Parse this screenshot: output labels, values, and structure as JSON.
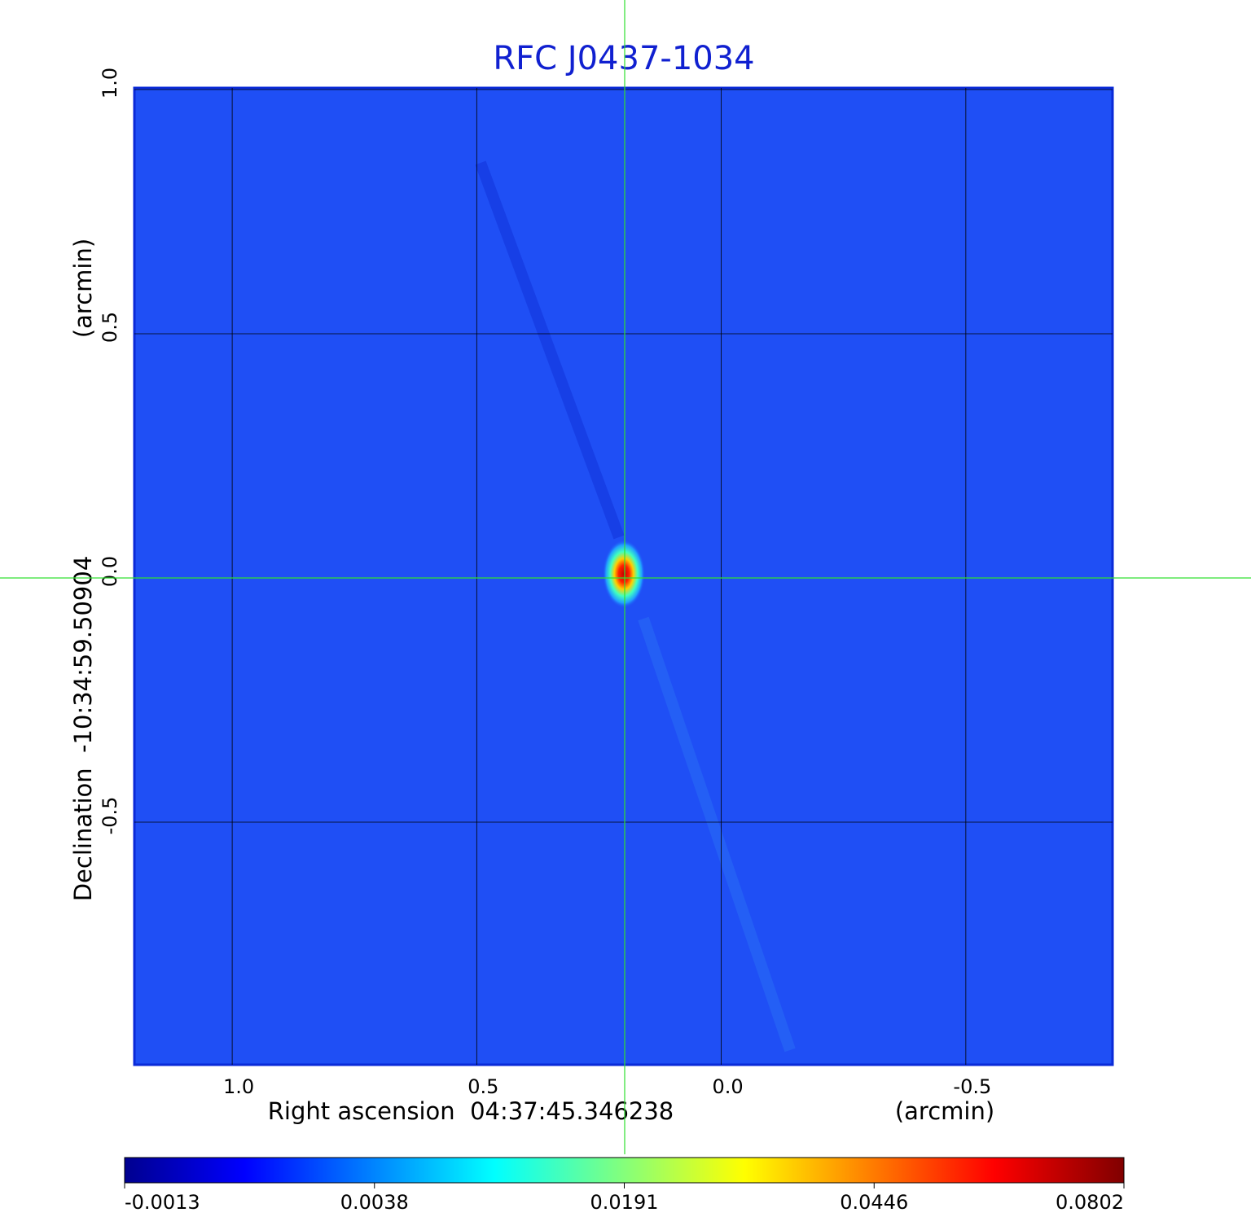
{
  "chart_data": {
    "type": "image",
    "title": "RFC J0437-1034",
    "x_label": "Right ascension  04:37:45.346238",
    "x_unit": "(arcmin)",
    "y_label": "Declination  -10:34:59.50904",
    "y_unit": "(arcmin)",
    "xlim": [
      1.2,
      -0.8
    ],
    "ylim": [
      -1.0,
      1.0
    ],
    "xticks": [
      {
        "value": 1,
        "label": "1.0"
      },
      {
        "value": 0.5,
        "label": "0.5"
      },
      {
        "value": 0,
        "label": "0.0"
      },
      {
        "value": -0.5,
        "label": "-0.5"
      }
    ],
    "yticks": [
      {
        "value": 1,
        "label": "1.0"
      },
      {
        "value": 0.5,
        "label": "0.5"
      },
      {
        "value": 0,
        "label": "0.0"
      },
      {
        "value": -0.5,
        "label": "-0.5"
      }
    ],
    "grid": true,
    "colorbar_ticks": [
      -0.0013,
      0.0038,
      0.0191,
      0.0446,
      0.0802
    ]
  }
}
